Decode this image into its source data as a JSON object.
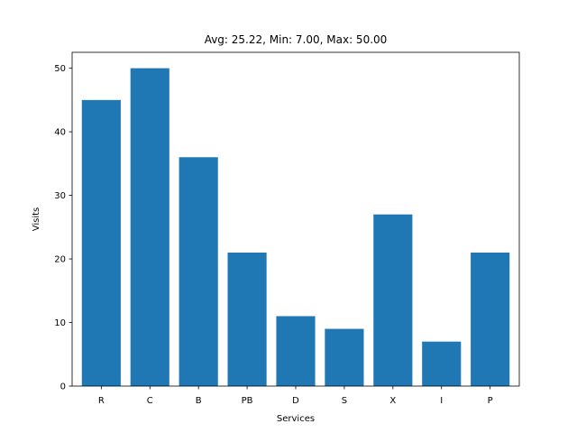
{
  "chart_data": {
    "type": "bar",
    "title": "Avg: 25.22, Min: 7.00, Max: 50.00",
    "xlabel": "Services",
    "ylabel": "Visits",
    "categories": [
      "R",
      "C",
      "B",
      "PB",
      "D",
      "S",
      "X",
      "I",
      "P"
    ],
    "values": [
      45,
      50,
      36,
      21,
      11,
      9,
      27,
      7,
      21
    ],
    "ylim": [
      0,
      52.5
    ],
    "yticks": [
      0,
      10,
      20,
      30,
      40,
      50
    ],
    "bar_color": "#1f77b4",
    "grid": false,
    "legend": "none"
  }
}
